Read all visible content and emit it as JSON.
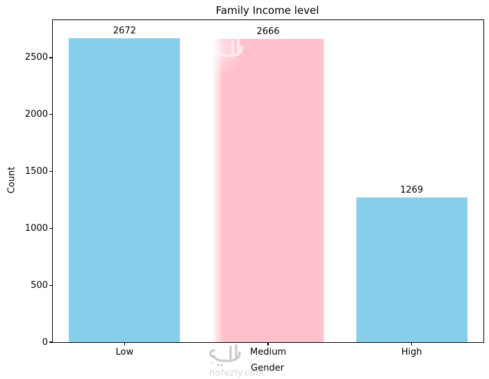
{
  "figure": {
    "background": "#ffffff"
  },
  "chart_data": {
    "type": "bar",
    "title": "Family Income level",
    "xlabel": "Gender",
    "ylabel": "Count",
    "categories": [
      "Low",
      "Medium",
      "High"
    ],
    "values": [
      2672,
      2666,
      1269
    ],
    "bar_labels": [
      "2672",
      "2666",
      "1269"
    ],
    "bar_colors": [
      "#87CEEB",
      "#FFC0CB",
      "#87CEEB"
    ],
    "yticks": [
      0,
      500,
      1000,
      1500,
      2000,
      2500
    ],
    "ylim": [
      0,
      2830
    ],
    "grid": false,
    "legend": null,
    "axis_color": "#000000",
    "text_color": "#000000"
  },
  "watermark": {
    "site": "nofezly.com",
    "logo": "nofezly-arabic-logo",
    "logo_color": "#c2c2c2",
    "text_color": "#d4d4d4"
  }
}
